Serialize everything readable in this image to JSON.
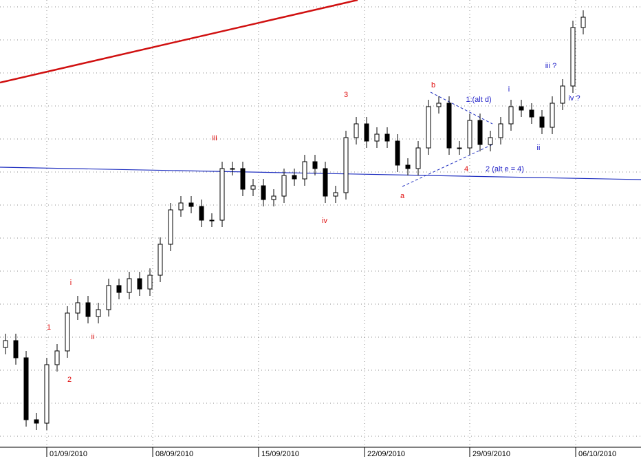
{
  "chart_data": {
    "type": "candlestick",
    "open": [
      145,
      155,
      130,
      40,
      35,
      120,
      140,
      195,
      210,
      190,
      200,
      235,
      225,
      245,
      230,
      250,
      295,
      345,
      355,
      350,
      330,
      330,
      405,
      405,
      375,
      380,
      360,
      365,
      395,
      390,
      415,
      405,
      365,
      370,
      450,
      470,
      445,
      455,
      445,
      410,
      405,
      435,
      495,
      500,
      435,
      435,
      475,
      440,
      450,
      470,
      495,
      490,
      480,
      465,
      500,
      525,
      610
    ],
    "high": [
      165,
      165,
      140,
      50,
      130,
      150,
      205,
      220,
      220,
      210,
      245,
      245,
      255,
      255,
      260,
      305,
      355,
      365,
      365,
      360,
      340,
      415,
      415,
      415,
      390,
      390,
      375,
      405,
      405,
      425,
      425,
      415,
      380,
      460,
      480,
      480,
      465,
      465,
      455,
      420,
      445,
      505,
      510,
      510,
      445,
      485,
      485,
      460,
      480,
      505,
      505,
      500,
      490,
      510,
      535,
      620,
      635
    ],
    "low": [
      135,
      120,
      30,
      25,
      25,
      110,
      130,
      185,
      180,
      180,
      190,
      215,
      215,
      220,
      220,
      240,
      285,
      335,
      340,
      320,
      320,
      320,
      395,
      365,
      365,
      350,
      350,
      355,
      380,
      380,
      395,
      355,
      355,
      360,
      440,
      435,
      435,
      435,
      400,
      395,
      395,
      425,
      485,
      425,
      425,
      425,
      430,
      430,
      440,
      460,
      480,
      470,
      455,
      455,
      490,
      515,
      600
    ],
    "close": [
      155,
      130,
      40,
      35,
      120,
      140,
      195,
      210,
      190,
      200,
      235,
      225,
      245,
      230,
      250,
      295,
      345,
      355,
      350,
      330,
      330,
      405,
      405,
      375,
      380,
      360,
      365,
      395,
      390,
      415,
      405,
      365,
      370,
      450,
      470,
      445,
      455,
      445,
      410,
      405,
      435,
      495,
      500,
      435,
      435,
      475,
      440,
      450,
      470,
      495,
      490,
      480,
      465,
      500,
      525,
      610,
      625
    ],
    "xlim": [
      -0.5333,
      61.6
    ],
    "ylim": [
      0,
      650
    ],
    "xticks": [
      {
        "value": 4,
        "label": "01/09/2010"
      },
      {
        "value": 14.27,
        "label": "08/09/2010"
      },
      {
        "value": 24.53,
        "label": "15/09/2010"
      },
      {
        "value": 34.8,
        "label": "22/09/2010"
      },
      {
        "value": 45,
        "label": "29/09/2010"
      },
      {
        "value": 55.27,
        "label": "06/10/2010"
      }
    ],
    "grid": true,
    "up_color": "#ffffff",
    "down_color": "#000000",
    "annotations": [
      {
        "text": "1",
        "color": "#e01010"
      },
      {
        "text": "2",
        "color": "#e01010"
      },
      {
        "text": "i",
        "color": "#e01010"
      },
      {
        "text": "ii",
        "color": "#e01010"
      },
      {
        "text": "iii",
        "color": "#e01010"
      },
      {
        "text": "iv",
        "color": "#e01010"
      },
      {
        "text": "3",
        "color": "#e01010"
      },
      {
        "text": "a",
        "color": "#e01010"
      },
      {
        "text": "b",
        "color": "#e01010"
      },
      {
        "text": "4",
        "color": "#e01010"
      },
      {
        "text": "1:(alt d)",
        "color": "#2020c8"
      },
      {
        "text": "2 (alt e = 4)",
        "color": "#2020c8"
      },
      {
        "text": "i",
        "color": "#2020c8"
      },
      {
        "text": "ii",
        "color": "#2020c8"
      },
      {
        "text": "iii ?",
        "color": "#2020c8"
      },
      {
        "text": "iv ?",
        "color": "#2020c8"
      }
    ]
  }
}
